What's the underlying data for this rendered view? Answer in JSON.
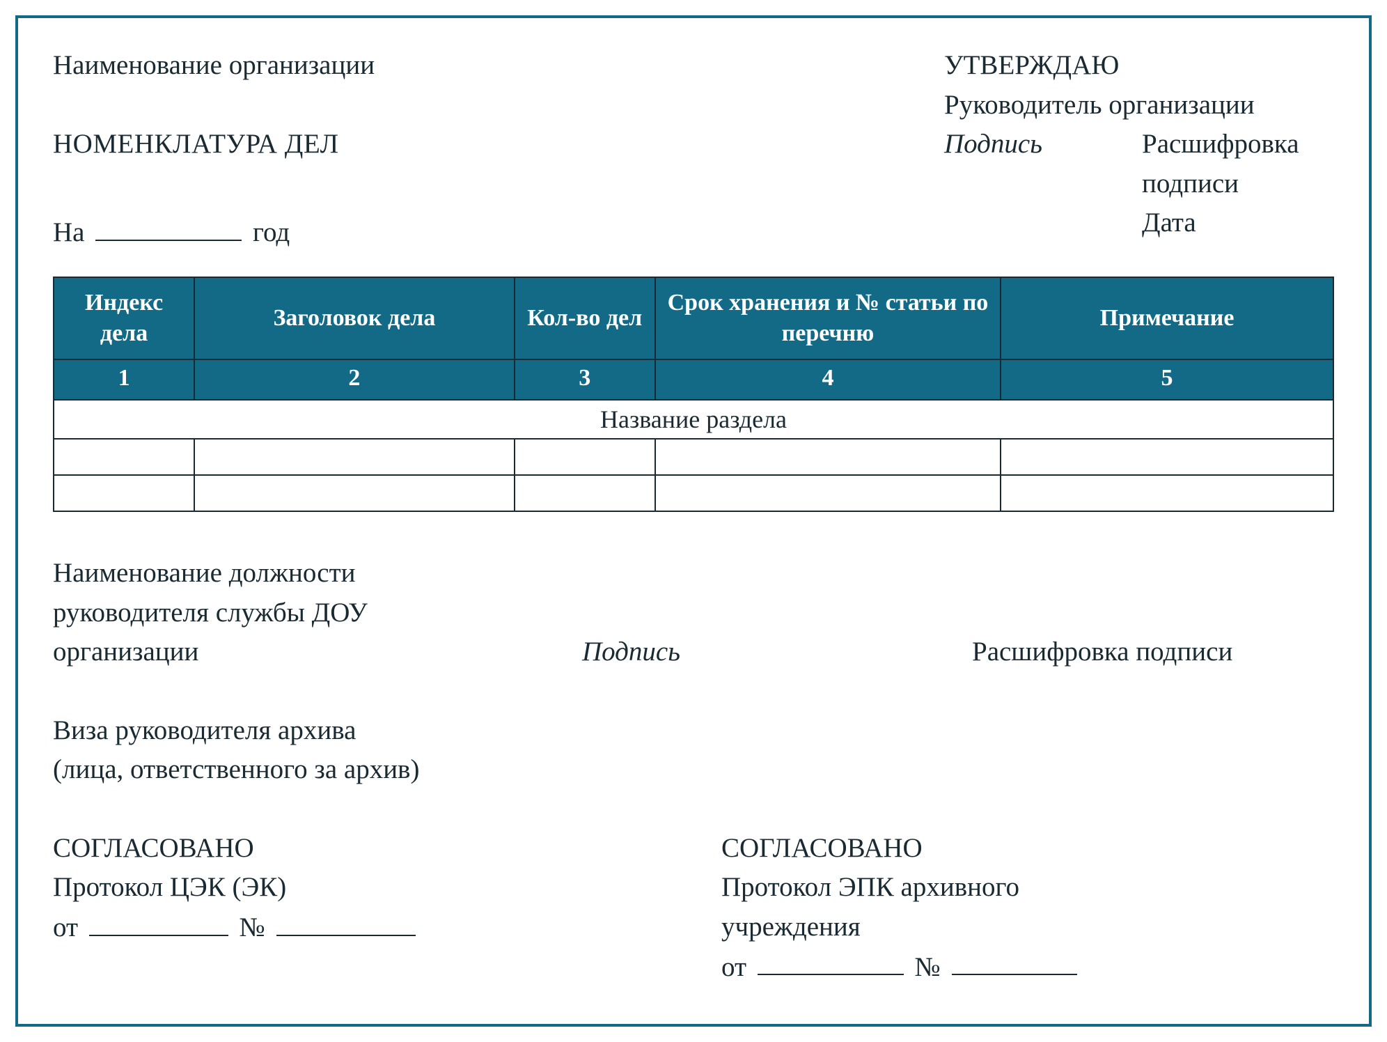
{
  "colors": {
    "frame_border": "#136a87",
    "text": "#1a2a33",
    "table_header_bg": "#136a87",
    "table_header_fg": "#ffffff",
    "table_border": "#1a2a33",
    "page_bg": "#ffffff"
  },
  "typography": {
    "base_fontsize_pt": 29,
    "table_header_fontsize_pt": 26,
    "font_family": "Palatino-style serif"
  },
  "header": {
    "org_label": "Наименование организации",
    "doc_title": "НОМЕНКЛАТУРА ДЕЛ",
    "year_prefix": "На",
    "year_suffix": "год"
  },
  "approval": {
    "approve_word": "УТВЕРЖДАЮ",
    "manager_label": "Руководитель организации",
    "signature_label": "Подпись",
    "decipher_label": "Расшифровка подписи",
    "date_label": "Дата"
  },
  "table": {
    "type": "table",
    "column_widths_pct": [
      11,
      25,
      11,
      27,
      26
    ],
    "header_bg": "#136a87",
    "header_fg": "#ffffff",
    "border_color": "#1a2a33",
    "columns": [
      "Индекс дела",
      "Заголовок дела",
      "Кол-во дел",
      "Срок хранения и № статьи по перечню",
      "Примечание"
    ],
    "column_numbers": [
      "1",
      "2",
      "3",
      "4",
      "5"
    ],
    "section_row_label": "Название раздела",
    "empty_rows": 2
  },
  "dou_signature": {
    "position_line1": "Наименование должности",
    "position_line2": "руководителя службы ДОУ",
    "position_line3": "организации",
    "signature_label": "Подпись",
    "decipher_label": "Расшифровка подписи"
  },
  "visa": {
    "line1": "Виза руководителя архива",
    "line2": "(лица, ответственного за архив)"
  },
  "agreed_left": {
    "title": "СОГЛАСОВАНО",
    "protocol": "Протокол ЦЭК (ЭК)",
    "from_word": "от",
    "num_symbol": "№"
  },
  "agreed_right": {
    "title": "СОГЛАСОВАНО",
    "protocol_l1": "Протокол ЭПК архивного",
    "protocol_l2": "учреждения",
    "from_word": "от",
    "num_symbol": "№"
  }
}
